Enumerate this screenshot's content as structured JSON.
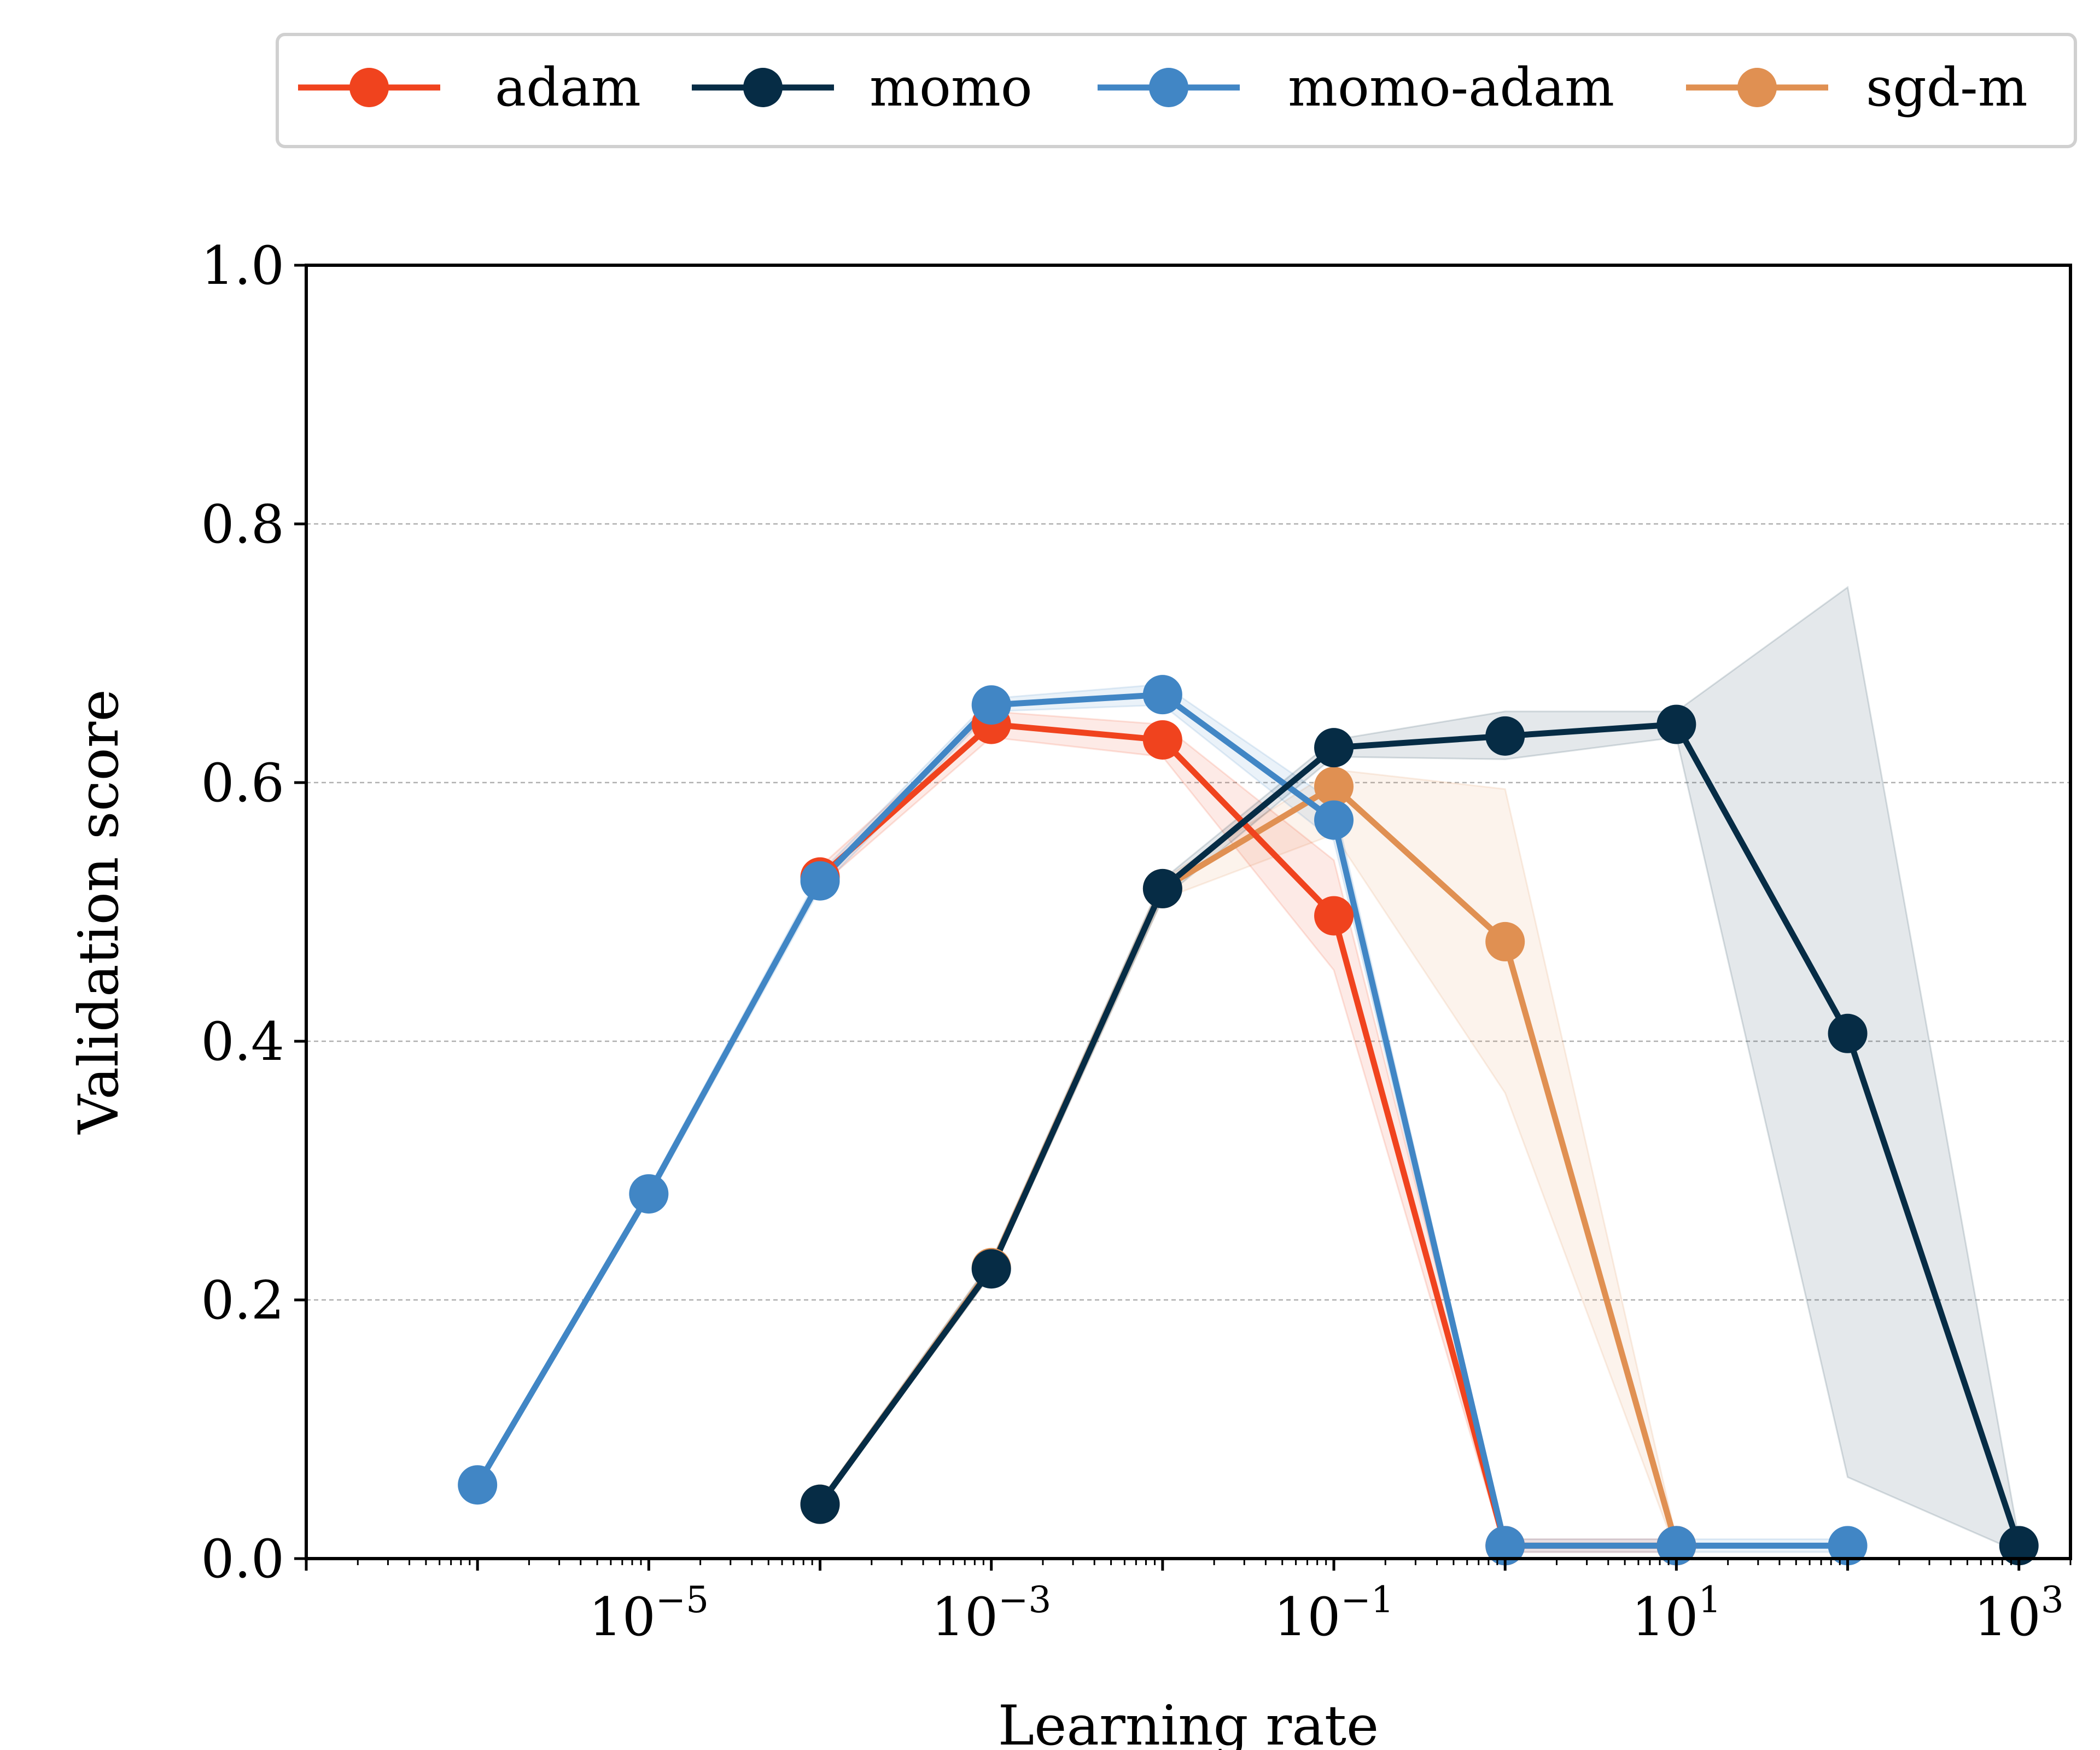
{
  "chart_data": {
    "type": "line",
    "title": "",
    "xlabel": "Learning rate",
    "ylabel": "Validation score",
    "xscale": "log",
    "xlim": [
      1e-07,
      2000
    ],
    "ylim": [
      0,
      1
    ],
    "grid": "horizontal dashed",
    "legend_position": "top, above plot",
    "x_tick_labels": [
      {
        "base": "10",
        "exp": "−5",
        "value": 1e-05
      },
      {
        "base": "10",
        "exp": "−3",
        "value": 0.001
      },
      {
        "base": "10",
        "exp": "−1",
        "value": 0.1
      },
      {
        "base": "10",
        "exp": "1",
        "value": 10
      },
      {
        "base": "10",
        "exp": "3",
        "value": 1000
      }
    ],
    "y_tick_labels": [
      "0.0",
      "0.2",
      "0.4",
      "0.6",
      "0.8",
      "1.0"
    ],
    "y_ticks": [
      0,
      0.2,
      0.4,
      0.6,
      0.8,
      1.0
    ],
    "series": [
      {
        "name": "sgd-m",
        "color": "#E09052",
        "x": [
          0.0001,
          0.001,
          0.01,
          0.1,
          1,
          10
        ],
        "y": [
          0.042,
          0.225,
          0.518,
          0.597,
          0.477,
          0.01
        ],
        "lower": [
          0.04,
          0.22,
          0.51,
          0.56,
          0.36,
          0.005
        ],
        "upper": [
          0.045,
          0.23,
          0.525,
          0.61,
          0.595,
          0.015
        ]
      },
      {
        "name": "adam",
        "color": "#F0431E",
        "x": [
          0.0001,
          0.001,
          0.01,
          0.1,
          1,
          10
        ],
        "y": [
          0.527,
          0.645,
          0.633,
          0.497,
          0.01,
          0.01
        ],
        "lower": [
          0.52,
          0.635,
          0.62,
          0.455,
          0.005,
          0.005
        ],
        "upper": [
          0.535,
          0.655,
          0.645,
          0.54,
          0.015,
          0.015
        ]
      },
      {
        "name": "momo-adam",
        "color": "#4186C5",
        "x": [
          1e-06,
          1e-05,
          0.0001,
          0.001,
          0.01,
          0.1,
          1,
          10,
          100
        ],
        "y": [
          0.057,
          0.282,
          0.524,
          0.66,
          0.668,
          0.571,
          0.01,
          0.01,
          0.01
        ],
        "lower": [
          0.055,
          0.278,
          0.518,
          0.655,
          0.66,
          0.555,
          0.005,
          0.005,
          0.005
        ],
        "upper": [
          0.06,
          0.286,
          0.53,
          0.665,
          0.676,
          0.585,
          0.015,
          0.015,
          0.015
        ]
      },
      {
        "name": "momo",
        "color": "#062C45",
        "x": [
          0.0001,
          0.001,
          0.01,
          0.1,
          1,
          10,
          100,
          1000
        ],
        "y": [
          0.042,
          0.224,
          0.518,
          0.627,
          0.636,
          0.645,
          0.406,
          0.01
        ],
        "lower": [
          0.04,
          0.22,
          0.51,
          0.62,
          0.618,
          0.635,
          0.063,
          0.005
        ],
        "upper": [
          0.045,
          0.23,
          0.525,
          0.633,
          0.655,
          0.655,
          0.751,
          0.015
        ]
      }
    ],
    "legend_order": [
      "adam",
      "momo",
      "momo-adam",
      "sgd-m"
    ]
  }
}
